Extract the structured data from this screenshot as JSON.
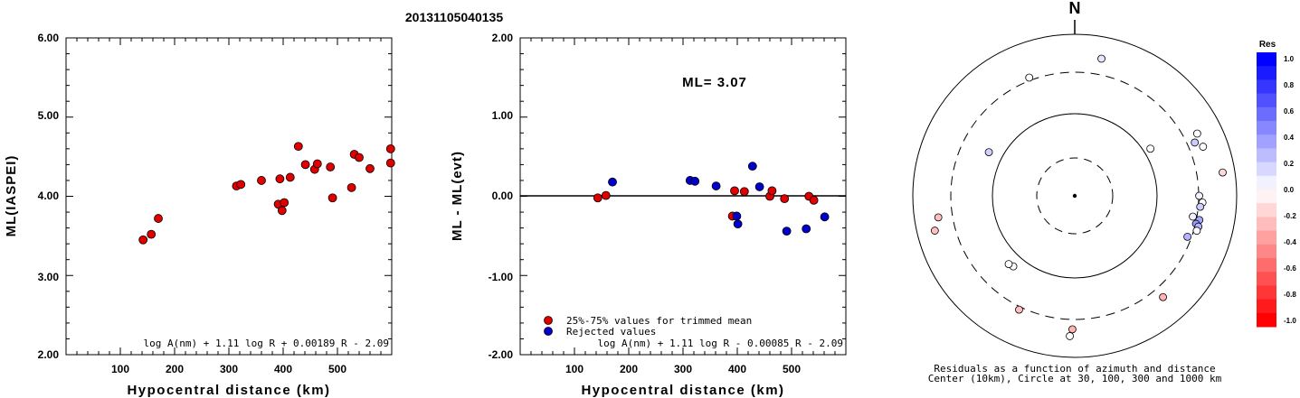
{
  "event_id": "20131105040135",
  "chart_data": [
    {
      "type": "scatter",
      "xlabel": "Hypocentral distance (km)",
      "ylabel": "ML(IASPEI)",
      "xlim": [
        0,
        600
      ],
      "ylim": [
        2.0,
        6.0
      ],
      "x_ticks": [
        "100",
        "200",
        "300",
        "400",
        "500"
      ],
      "y_ticks": [
        "2.00",
        "3.00",
        "4.00",
        "5.00",
        "6.00"
      ],
      "formula": "log A(nm) + 1.11 log R + 0.00189 R - 2.09",
      "marker_color": "#e00000",
      "points": [
        {
          "x": 142,
          "y": 3.45
        },
        {
          "x": 157,
          "y": 3.52
        },
        {
          "x": 170,
          "y": 3.72
        },
        {
          "x": 314,
          "y": 4.13
        },
        {
          "x": 322,
          "y": 4.15
        },
        {
          "x": 360,
          "y": 4.2
        },
        {
          "x": 391,
          "y": 3.9
        },
        {
          "x": 394,
          "y": 4.22
        },
        {
          "x": 398,
          "y": 3.82
        },
        {
          "x": 402,
          "y": 3.92
        },
        {
          "x": 413,
          "y": 4.24
        },
        {
          "x": 428,
          "y": 4.63
        },
        {
          "x": 441,
          "y": 4.4
        },
        {
          "x": 458,
          "y": 4.34
        },
        {
          "x": 463,
          "y": 4.41
        },
        {
          "x": 487,
          "y": 4.37
        },
        {
          "x": 491,
          "y": 3.98
        },
        {
          "x": 526,
          "y": 4.11
        },
        {
          "x": 531,
          "y": 4.53
        },
        {
          "x": 540,
          "y": 4.49
        },
        {
          "x": 560,
          "y": 4.35
        },
        {
          "x": 598,
          "y": 4.6
        },
        {
          "x": 598,
          "y": 4.42
        }
      ]
    },
    {
      "type": "scatter",
      "xlabel": "Hypocentral distance (km)",
      "ylabel": "ML - ML(evt)",
      "xlim": [
        0,
        600
      ],
      "ylim": [
        -2.0,
        2.0
      ],
      "x_ticks": [
        "100",
        "200",
        "300",
        "400",
        "500"
      ],
      "y_ticks": [
        "2.00",
        "1.00",
        "0.00",
        "-1.00",
        "-2.00"
      ],
      "annotation": "ML= 3.07",
      "formula": "log A(nm) + 1.11 log R - 0.00085 R - 2.09",
      "legend": [
        {
          "label": "25%-75% values for trimmed mean",
          "color": "#e00000"
        },
        {
          "label": "Rejected values",
          "color": "#0000cc"
        }
      ],
      "series": [
        {
          "name": "25%-75% values for trimmed mean",
          "color": "#e00000",
          "points": [
            {
              "x": 143,
              "y": -0.02
            },
            {
              "x": 158,
              "y": 0.01
            },
            {
              "x": 391,
              "y": -0.25
            },
            {
              "x": 395,
              "y": 0.07
            },
            {
              "x": 413,
              "y": 0.06
            },
            {
              "x": 460,
              "y": 0.0
            },
            {
              "x": 464,
              "y": 0.07
            },
            {
              "x": 487,
              "y": -0.03
            },
            {
              "x": 532,
              "y": 0.0
            },
            {
              "x": 541,
              "y": -0.05
            }
          ]
        },
        {
          "name": "Rejected values",
          "color": "#0000cc",
          "points": [
            {
              "x": 170,
              "y": 0.18
            },
            {
              "x": 313,
              "y": 0.2
            },
            {
              "x": 322,
              "y": 0.19
            },
            {
              "x": 361,
              "y": 0.13
            },
            {
              "x": 399,
              "y": -0.25
            },
            {
              "x": 401,
              "y": -0.35
            },
            {
              "x": 428,
              "y": 0.38
            },
            {
              "x": 441,
              "y": 0.12
            },
            {
              "x": 491,
              "y": -0.44
            },
            {
              "x": 527,
              "y": -0.41
            },
            {
              "x": 561,
              "y": -0.26
            }
          ]
        }
      ]
    },
    {
      "type": "polar-scatter",
      "north_label": "N",
      "caption_line1": "Residuals as a function of azimuth and distance",
      "caption_line2": "Center (10km), Circle at 30, 100, 300 and 1000 km",
      "rings_km": [
        30,
        100,
        300,
        1000
      ],
      "points": [
        {
          "azimuth": 11,
          "distance": 500,
          "residual": 0.1
        },
        {
          "azimuth": 339,
          "distance": 330,
          "residual": 0.0
        },
        {
          "azimuth": 297,
          "distance": 145,
          "residual": 0.18
        },
        {
          "azimuth": 58,
          "distance": 120,
          "residual": 0.0
        },
        {
          "azimuth": 63,
          "distance": 460,
          "residual": 0.0
        },
        {
          "azimuth": 66,
          "distance": 380,
          "residual": 0.2
        },
        {
          "azimuth": 69,
          "distance": 460,
          "residual": 0.0
        },
        {
          "azimuth": 81,
          "distance": 680,
          "residual": -0.15
        },
        {
          "azimuth": 90,
          "distance": 305,
          "residual": 0.05
        },
        {
          "azimuth": 93,
          "distance": 340,
          "residual": 0.0
        },
        {
          "azimuth": 95,
          "distance": 320,
          "residual": 0.2
        },
        {
          "azimuth": 100,
          "distance": 270,
          "residual": 0.05
        },
        {
          "azimuth": 101,
          "distance": 330,
          "residual": 0.35
        },
        {
          "azimuth": 103,
          "distance": 305,
          "residual": 0.4
        },
        {
          "azimuth": 104,
          "distance": 335,
          "residual": 0.3
        },
        {
          "azimuth": 106,
          "distance": 330,
          "residual": 0.0
        },
        {
          "azimuth": 110,
          "distance": 270,
          "residual": 0.3
        },
        {
          "azimuth": 139,
          "distance": 420,
          "residual": -0.3
        },
        {
          "azimuth": 181,
          "distance": 410,
          "residual": -0.3
        },
        {
          "azimuth": 182,
          "distance": 510,
          "residual": 0.0
        },
        {
          "azimuth": 206,
          "distance": 330,
          "residual": -0.25
        },
        {
          "azimuth": 221,
          "distance": 135,
          "residual": 0.0
        },
        {
          "azimuth": 224,
          "distance": 140,
          "residual": 0.0
        },
        {
          "azimuth": 256,
          "distance": 570,
          "residual": -0.25
        },
        {
          "azimuth": 261,
          "distance": 470,
          "residual": -0.25
        }
      ]
    }
  ],
  "colorbar": {
    "title": "Res",
    "ticks": [
      "1.0",
      "0.8",
      "0.6",
      "0.4",
      "0.2",
      "0.0",
      "-0.2",
      "-0.4",
      "-0.6",
      "-0.8",
      "-1.0"
    ],
    "max_color": "#0000ff",
    "min_color": "#ff0000"
  }
}
